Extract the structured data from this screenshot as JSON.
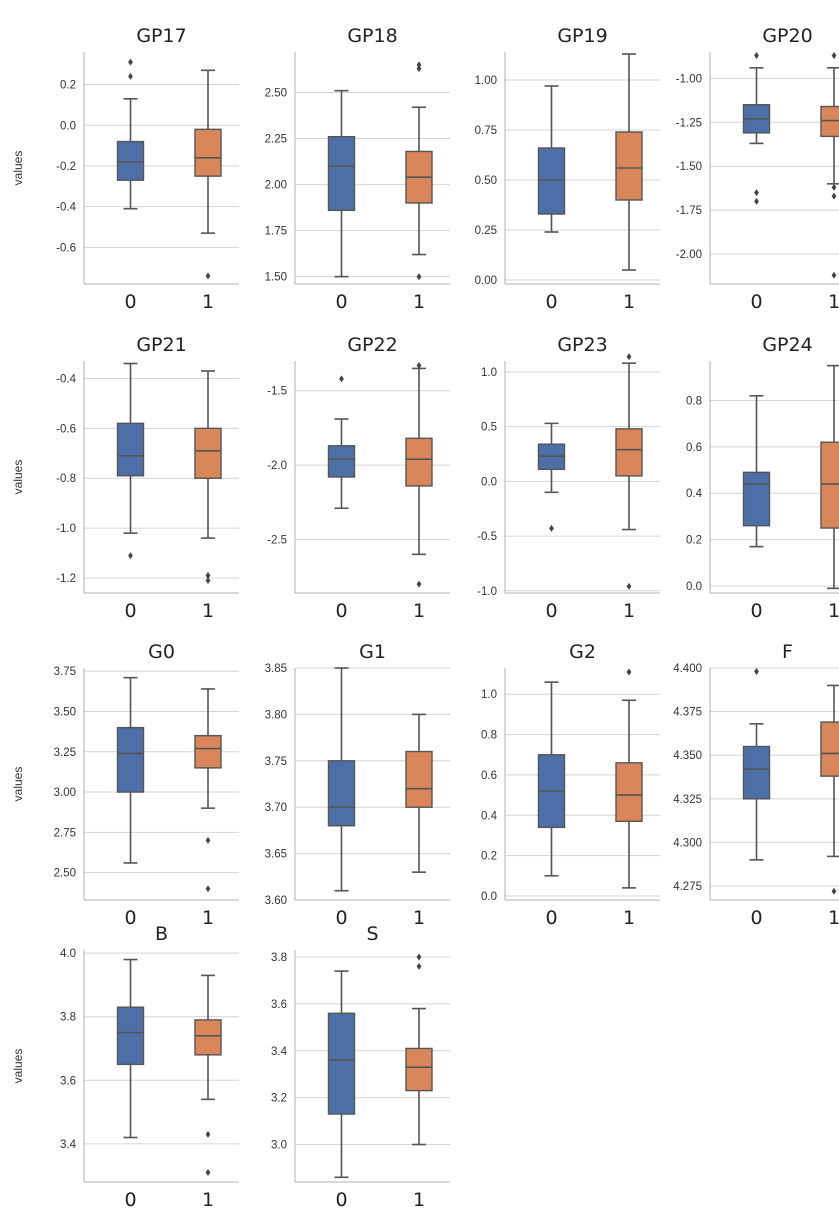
{
  "figure": {
    "y_axis_label": "values",
    "colors": {
      "group_0": "#4c6fa8",
      "group_1": "#d9875a",
      "grid": "#d4d4d4",
      "axis": "#b0b0b0",
      "whisker": "#555555"
    }
  },
  "chart_data": [
    {
      "type": "box",
      "title": "GP17",
      "categories": [
        "0",
        "1"
      ],
      "ylim": [
        -0.78,
        0.36
      ],
      "yticks": [
        "0.2",
        "0.0",
        "-0.2",
        "-0.4",
        "-0.6"
      ],
      "ytick_values": [
        0.2,
        0.0,
        -0.2,
        -0.4,
        -0.6
      ],
      "grid": true,
      "boxes": [
        {
          "group": "0",
          "whislo": -0.41,
          "q1": -0.27,
          "med": -0.18,
          "q3": -0.08,
          "whishi": 0.13,
          "fliers": [
            0.31,
            0.24
          ]
        },
        {
          "group": "1",
          "whislo": -0.53,
          "q1": -0.25,
          "med": -0.16,
          "q3": -0.02,
          "whishi": 0.27,
          "fliers": [
            -0.74
          ]
        }
      ]
    },
    {
      "type": "box",
      "title": "GP18",
      "categories": [
        "0",
        "1"
      ],
      "ylim": [
        1.46,
        2.72
      ],
      "yticks": [
        "2.50",
        "2.25",
        "2.00",
        "1.75",
        "1.50"
      ],
      "ytick_values": [
        2.5,
        2.25,
        2.0,
        1.75,
        1.5
      ],
      "grid": true,
      "boxes": [
        {
          "group": "0",
          "whislo": 1.5,
          "q1": 1.86,
          "med": 2.1,
          "q3": 2.26,
          "whishi": 2.51,
          "fliers": []
        },
        {
          "group": "1",
          "whislo": 1.62,
          "q1": 1.9,
          "med": 2.04,
          "q3": 2.18,
          "whishi": 2.42,
          "fliers": [
            2.63,
            2.65,
            1.5
          ]
        }
      ]
    },
    {
      "type": "box",
      "title": "GP19",
      "categories": [
        "0",
        "1"
      ],
      "ylim": [
        -0.02,
        1.14
      ],
      "yticks": [
        "1.00",
        "0.75",
        "0.50",
        "0.25",
        "0.00"
      ],
      "ytick_values": [
        1.0,
        0.75,
        0.5,
        0.25,
        0.0
      ],
      "grid": true,
      "boxes": [
        {
          "group": "0",
          "whislo": 0.24,
          "q1": 0.33,
          "med": 0.5,
          "q3": 0.66,
          "whishi": 0.97,
          "fliers": []
        },
        {
          "group": "1",
          "whislo": 0.05,
          "q1": 0.4,
          "med": 0.56,
          "q3": 0.74,
          "whishi": 1.13,
          "fliers": []
        }
      ]
    },
    {
      "type": "box",
      "title": "GP20",
      "categories": [
        "0",
        "1"
      ],
      "ylim": [
        -2.17,
        -0.85
      ],
      "yticks": [
        "-1.00",
        "-1.25",
        "-1.50",
        "-1.75",
        "-2.00"
      ],
      "ytick_values": [
        -1.0,
        -1.25,
        -1.5,
        -1.75,
        -2.0
      ],
      "grid": true,
      "boxes": [
        {
          "group": "0",
          "whislo": -1.37,
          "q1": -1.31,
          "med": -1.23,
          "q3": -1.15,
          "whishi": -0.94,
          "fliers": [
            -0.87,
            -1.65,
            -1.7
          ]
        },
        {
          "group": "1",
          "whislo": -1.6,
          "q1": -1.33,
          "med": -1.24,
          "q3": -1.16,
          "whishi": -0.94,
          "fliers": [
            -0.87,
            -1.62,
            -1.67,
            -2.12
          ]
        }
      ]
    },
    {
      "type": "box",
      "title": "GP21",
      "categories": [
        "0",
        "1"
      ],
      "ylim": [
        -1.26,
        -0.33
      ],
      "yticks": [
        "-0.4",
        "-0.6",
        "-0.8",
        "-1.0",
        "-1.2"
      ],
      "ytick_values": [
        -0.4,
        -0.6,
        -0.8,
        -1.0,
        -1.2
      ],
      "grid": true,
      "boxes": [
        {
          "group": "0",
          "whislo": -1.02,
          "q1": -0.79,
          "med": -0.71,
          "q3": -0.58,
          "whishi": -0.34,
          "fliers": [
            -1.11
          ]
        },
        {
          "group": "1",
          "whislo": -1.04,
          "q1": -0.8,
          "med": -0.69,
          "q3": -0.6,
          "whishi": -0.37,
          "fliers": [
            -1.19,
            -1.21
          ]
        }
      ]
    },
    {
      "type": "box",
      "title": "GP22",
      "categories": [
        "0",
        "1"
      ],
      "ylim": [
        -2.86,
        -1.3
      ],
      "yticks": [
        "-1.5",
        "-2.0",
        "-2.5"
      ],
      "ytick_values": [
        -1.5,
        -2.0,
        -2.5
      ],
      "grid": true,
      "boxes": [
        {
          "group": "0",
          "whislo": -2.29,
          "q1": -2.08,
          "med": -1.96,
          "q3": -1.87,
          "whishi": -1.69,
          "fliers": [
            -1.42
          ]
        },
        {
          "group": "1",
          "whislo": -2.6,
          "q1": -2.14,
          "med": -1.96,
          "q3": -1.82,
          "whishi": -1.35,
          "fliers": [
            -1.33,
            -2.8
          ]
        }
      ]
    },
    {
      "type": "box",
      "title": "GP23",
      "categories": [
        "0",
        "1"
      ],
      "ylim": [
        -1.02,
        1.1
      ],
      "yticks": [
        "1.0",
        "0.5",
        "0.0",
        "-0.5",
        "-1.0"
      ],
      "ytick_values": [
        1.0,
        0.5,
        0.0,
        -0.5,
        -1.0
      ],
      "grid": true,
      "boxes": [
        {
          "group": "0",
          "whislo": -0.1,
          "q1": 0.11,
          "med": 0.23,
          "q3": 0.34,
          "whishi": 0.53,
          "fliers": [
            -0.43
          ]
        },
        {
          "group": "1",
          "whislo": -0.44,
          "q1": 0.05,
          "med": 0.29,
          "q3": 0.48,
          "whishi": 1.08,
          "fliers": [
            1.14,
            -0.96
          ]
        }
      ]
    },
    {
      "type": "box",
      "title": "GP24",
      "categories": [
        "0",
        "1"
      ],
      "ylim": [
        -0.03,
        0.97
      ],
      "yticks": [
        "0.8",
        "0.6",
        "0.4",
        "0.2",
        "0.0"
      ],
      "ytick_values": [
        0.8,
        0.6,
        0.4,
        0.2,
        0.0
      ],
      "grid": true,
      "boxes": [
        {
          "group": "0",
          "whislo": 0.17,
          "q1": 0.26,
          "med": 0.44,
          "q3": 0.49,
          "whishi": 0.82,
          "fliers": []
        },
        {
          "group": "1",
          "whislo": -0.01,
          "q1": 0.25,
          "med": 0.44,
          "q3": 0.62,
          "whishi": 0.95,
          "fliers": []
        }
      ]
    },
    {
      "type": "box",
      "title": "G0",
      "categories": [
        "0",
        "1"
      ],
      "ylim": [
        2.33,
        3.77
      ],
      "yticks": [
        "3.75",
        "3.50",
        "3.25",
        "3.00",
        "2.75",
        "2.50"
      ],
      "ytick_values": [
        3.75,
        3.5,
        3.25,
        3.0,
        2.75,
        2.5
      ],
      "grid": true,
      "boxes": [
        {
          "group": "0",
          "whislo": 2.56,
          "q1": 3.0,
          "med": 3.24,
          "q3": 3.4,
          "whishi": 3.71,
          "fliers": []
        },
        {
          "group": "1",
          "whislo": 2.9,
          "q1": 3.15,
          "med": 3.27,
          "q3": 3.35,
          "whishi": 3.64,
          "fliers": [
            2.7,
            2.4
          ]
        }
      ]
    },
    {
      "type": "box",
      "title": "G1",
      "categories": [
        "0",
        "1"
      ],
      "ylim": [
        3.6,
        3.85
      ],
      "yticks": [
        "3.85",
        "3.80",
        "3.75",
        "3.70",
        "3.65",
        "3.60"
      ],
      "ytick_values": [
        3.85,
        3.8,
        3.75,
        3.7,
        3.65,
        3.6
      ],
      "grid": true,
      "boxes": [
        {
          "group": "0",
          "whislo": 3.61,
          "q1": 3.68,
          "med": 3.7,
          "q3": 3.75,
          "whishi": 3.85,
          "fliers": []
        },
        {
          "group": "1",
          "whislo": 3.63,
          "q1": 3.7,
          "med": 3.72,
          "q3": 3.76,
          "whishi": 3.8,
          "fliers": []
        }
      ]
    },
    {
      "type": "box",
      "title": "G2",
      "categories": [
        "0",
        "1"
      ],
      "ylim": [
        -0.02,
        1.13
      ],
      "yticks": [
        "1.0",
        "0.8",
        "0.6",
        "0.4",
        "0.2",
        "0.0"
      ],
      "ytick_values": [
        1.0,
        0.8,
        0.6,
        0.4,
        0.2,
        0.0
      ],
      "grid": true,
      "boxes": [
        {
          "group": "0",
          "whislo": 0.1,
          "q1": 0.34,
          "med": 0.52,
          "q3": 0.7,
          "whishi": 1.06,
          "fliers": []
        },
        {
          "group": "1",
          "whislo": 0.04,
          "q1": 0.37,
          "med": 0.5,
          "q3": 0.66,
          "whishi": 0.97,
          "fliers": [
            1.11
          ]
        }
      ]
    },
    {
      "type": "box",
      "title": "F",
      "categories": [
        "0",
        "1"
      ],
      "ylim": [
        4.267,
        4.4
      ],
      "yticks": [
        "4.400",
        "4.375",
        "4.350",
        "4.325",
        "4.300",
        "4.275"
      ],
      "ytick_values": [
        4.4,
        4.375,
        4.35,
        4.325,
        4.3,
        4.275
      ],
      "grid": true,
      "boxes": [
        {
          "group": "0",
          "whislo": 4.29,
          "q1": 4.325,
          "med": 4.342,
          "q3": 4.355,
          "whishi": 4.368,
          "fliers": [
            4.398
          ]
        },
        {
          "group": "1",
          "whislo": 4.292,
          "q1": 4.338,
          "med": 4.351,
          "q3": 4.369,
          "whishi": 4.39,
          "fliers": [
            4.272
          ]
        }
      ]
    },
    {
      "type": "box",
      "title": "B",
      "categories": [
        "0",
        "1"
      ],
      "ylim": [
        3.28,
        4.01
      ],
      "yticks": [
        "4.0",
        "3.8",
        "3.6",
        "3.4"
      ],
      "ytick_values": [
        4.0,
        3.8,
        3.6,
        3.4
      ],
      "grid": true,
      "boxes": [
        {
          "group": "0",
          "whislo": 3.42,
          "q1": 3.65,
          "med": 3.75,
          "q3": 3.83,
          "whishi": 3.98,
          "fliers": []
        },
        {
          "group": "1",
          "whislo": 3.54,
          "q1": 3.68,
          "med": 3.74,
          "q3": 3.79,
          "whishi": 3.93,
          "fliers": [
            3.43,
            3.31
          ]
        }
      ]
    },
    {
      "type": "box",
      "title": "S",
      "categories": [
        "0",
        "1"
      ],
      "ylim": [
        2.84,
        3.83
      ],
      "yticks": [
        "3.8",
        "3.6",
        "3.4",
        "3.2",
        "3.0"
      ],
      "ytick_values": [
        3.8,
        3.6,
        3.4,
        3.2,
        3.0
      ],
      "grid": true,
      "boxes": [
        {
          "group": "0",
          "whislo": 2.86,
          "q1": 3.13,
          "med": 3.36,
          "q3": 3.56,
          "whishi": 3.74,
          "fliers": []
        },
        {
          "group": "1",
          "whislo": 3.0,
          "q1": 3.23,
          "med": 3.33,
          "q3": 3.41,
          "whishi": 3.58,
          "fliers": [
            3.8,
            3.76
          ]
        }
      ]
    }
  ]
}
